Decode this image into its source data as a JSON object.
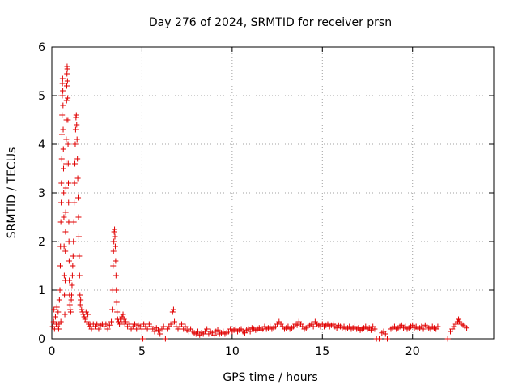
{
  "chart_data": {
    "type": "scatter",
    "title": "Day 276 of 2024, SRMTID for receiver prsn",
    "xlabel": "GPS time / hours",
    "ylabel": "SRMTID / TECUs",
    "xlim": [
      0,
      24.5
    ],
    "ylim": [
      0,
      6
    ],
    "xticks": [
      0,
      5,
      10,
      15,
      20
    ],
    "xtick_labels": [
      "0",
      "5",
      "10",
      "15",
      "20"
    ],
    "yticks": [
      0,
      1,
      2,
      3,
      4,
      5,
      6
    ],
    "ytick_labels": [
      "0",
      "1",
      "2",
      "3",
      "4",
      "5",
      "6"
    ],
    "grid": true,
    "marker": "plus",
    "series": [
      {
        "name": "SRMTID",
        "color": "#e00000",
        "points": [
          [
            0.05,
            0.25
          ],
          [
            0.1,
            0.35
          ],
          [
            0.12,
            0.6
          ],
          [
            0.15,
            0.2
          ],
          [
            0.2,
            0.45
          ],
          [
            0.25,
            0.3
          ],
          [
            0.28,
            0.65
          ],
          [
            0.3,
            0.25
          ],
          [
            0.35,
            0.55
          ],
          [
            0.38,
            0.2
          ],
          [
            0.4,
            0.3
          ],
          [
            0.42,
            0.8
          ],
          [
            0.45,
            1.0
          ],
          [
            0.47,
            1.5
          ],
          [
            0.48,
            1.9
          ],
          [
            0.5,
            2.4
          ],
          [
            0.5,
            0.35
          ],
          [
            0.52,
            2.8
          ],
          [
            0.53,
            3.2
          ],
          [
            0.55,
            3.7
          ],
          [
            0.56,
            4.2
          ],
          [
            0.57,
            4.6
          ],
          [
            0.58,
            5.0
          ],
          [
            0.59,
            5.25
          ],
          [
            0.6,
            5.35
          ],
          [
            0.61,
            5.1
          ],
          [
            0.62,
            4.8
          ],
          [
            0.63,
            4.3
          ],
          [
            0.64,
            3.9
          ],
          [
            0.65,
            3.5
          ],
          [
            0.66,
            3.0
          ],
          [
            0.67,
            2.5
          ],
          [
            0.68,
            1.9
          ],
          [
            0.69,
            1.3
          ],
          [
            0.7,
            0.9
          ],
          [
            0.72,
            0.5
          ],
          [
            0.74,
            1.2
          ],
          [
            0.75,
            1.8
          ],
          [
            0.76,
            2.2
          ],
          [
            0.77,
            2.6
          ],
          [
            0.78,
            3.1
          ],
          [
            0.79,
            3.6
          ],
          [
            0.8,
            4.1
          ],
          [
            0.81,
            4.5
          ],
          [
            0.82,
            4.9
          ],
          [
            0.83,
            5.2
          ],
          [
            0.84,
            5.45
          ],
          [
            0.85,
            5.6
          ],
          [
            0.86,
            5.55
          ],
          [
            0.87,
            5.3
          ],
          [
            0.88,
            4.95
          ],
          [
            0.89,
            4.5
          ],
          [
            0.9,
            4.0
          ],
          [
            0.91,
            3.6
          ],
          [
            0.92,
            3.2
          ],
          [
            0.93,
            2.8
          ],
          [
            0.94,
            2.4
          ],
          [
            0.95,
            2.0
          ],
          [
            0.96,
            1.6
          ],
          [
            0.97,
            1.2
          ],
          [
            0.98,
            0.9
          ],
          [
            1.0,
            0.7
          ],
          [
            1.02,
            0.6
          ],
          [
            1.05,
            0.55
          ],
          [
            1.08,
            0.8
          ],
          [
            1.1,
            0.9
          ],
          [
            1.12,
            1.1
          ],
          [
            1.14,
            1.3
          ],
          [
            1.16,
            1.5
          ],
          [
            1.18,
            1.7
          ],
          [
            1.2,
            2.0
          ],
          [
            1.22,
            2.4
          ],
          [
            1.24,
            2.8
          ],
          [
            1.26,
            3.2
          ],
          [
            1.28,
            3.6
          ],
          [
            1.3,
            4.0
          ],
          [
            1.32,
            4.3
          ],
          [
            1.34,
            4.55
          ],
          [
            1.36,
            4.6
          ],
          [
            1.38,
            4.4
          ],
          [
            1.4,
            4.1
          ],
          [
            1.42,
            3.7
          ],
          [
            1.44,
            3.3
          ],
          [
            1.46,
            2.9
          ],
          [
            1.48,
            2.5
          ],
          [
            1.5,
            2.1
          ],
          [
            1.52,
            1.7
          ],
          [
            1.54,
            1.3
          ],
          [
            1.56,
            0.9
          ],
          [
            1.58,
            0.7
          ],
          [
            1.6,
            0.8
          ],
          [
            1.65,
            0.6
          ],
          [
            1.7,
            0.55
          ],
          [
            1.75,
            0.5
          ],
          [
            1.8,
            0.45
          ],
          [
            1.85,
            0.4
          ],
          [
            1.9,
            0.55
          ],
          [
            1.95,
            0.35
          ],
          [
            2.0,
            0.5
          ],
          [
            2.05,
            0.3
          ],
          [
            2.1,
            0.25
          ],
          [
            2.15,
            0.3
          ],
          [
            2.2,
            0.2
          ],
          [
            2.3,
            0.3
          ],
          [
            2.4,
            0.25
          ],
          [
            2.5,
            0.3
          ],
          [
            2.6,
            0.2
          ],
          [
            2.7,
            0.28
          ],
          [
            2.8,
            0.3
          ],
          [
            2.9,
            0.25
          ],
          [
            3.0,
            0.3
          ],
          [
            3.1,
            0.2
          ],
          [
            3.2,
            0.28
          ],
          [
            3.3,
            0.35
          ],
          [
            3.35,
            0.6
          ],
          [
            3.38,
            1.0
          ],
          [
            3.4,
            1.5
          ],
          [
            3.42,
            1.8
          ],
          [
            3.44,
            2.0
          ],
          [
            3.46,
            2.2
          ],
          [
            3.48,
            2.25
          ],
          [
            3.5,
            2.1
          ],
          [
            3.52,
            1.9
          ],
          [
            3.54,
            1.6
          ],
          [
            3.56,
            1.3
          ],
          [
            3.58,
            1.0
          ],
          [
            3.6,
            0.75
          ],
          [
            3.62,
            0.55
          ],
          [
            3.65,
            0.4
          ],
          [
            3.7,
            0.35
          ],
          [
            3.75,
            0.3
          ],
          [
            3.8,
            0.4
          ],
          [
            3.85,
            0.35
          ],
          [
            3.9,
            0.45
          ],
          [
            3.95,
            0.5
          ],
          [
            4.0,
            0.4
          ],
          [
            4.05,
            0.3
          ],
          [
            4.1,
            0.35
          ],
          [
            4.2,
            0.25
          ],
          [
            4.3,
            0.3
          ],
          [
            4.4,
            0.2
          ],
          [
            4.5,
            0.25
          ],
          [
            4.6,
            0.3
          ],
          [
            4.7,
            0.2
          ],
          [
            4.8,
            0.28
          ],
          [
            4.9,
            0.25
          ],
          [
            5.0,
            0.2
          ],
          [
            5.05,
            0.0
          ],
          [
            5.1,
            0.3
          ],
          [
            5.2,
            0.25
          ],
          [
            5.3,
            0.2
          ],
          [
            5.4,
            0.3
          ],
          [
            5.5,
            0.25
          ],
          [
            5.6,
            0.2
          ],
          [
            5.7,
            0.15
          ],
          [
            5.8,
            0.22
          ],
          [
            5.9,
            0.18
          ],
          [
            6.0,
            0.1
          ],
          [
            6.1,
            0.2
          ],
          [
            6.2,
            0.25
          ],
          [
            6.3,
            0.0
          ],
          [
            6.4,
            0.2
          ],
          [
            6.5,
            0.25
          ],
          [
            6.6,
            0.3
          ],
          [
            6.7,
            0.55
          ],
          [
            6.75,
            0.6
          ],
          [
            6.8,
            0.35
          ],
          [
            6.9,
            0.25
          ],
          [
            7.0,
            0.2
          ],
          [
            7.1,
            0.25
          ],
          [
            7.2,
            0.3
          ],
          [
            7.3,
            0.2
          ],
          [
            7.4,
            0.25
          ],
          [
            7.5,
            0.18
          ],
          [
            7.6,
            0.15
          ],
          [
            7.7,
            0.2
          ],
          [
            7.8,
            0.15
          ],
          [
            7.9,
            0.12
          ],
          [
            8.0,
            0.1
          ],
          [
            8.1,
            0.15
          ],
          [
            8.2,
            0.08
          ],
          [
            8.3,
            0.12
          ],
          [
            8.4,
            0.1
          ],
          [
            8.5,
            0.15
          ],
          [
            8.6,
            0.2
          ],
          [
            8.7,
            0.1
          ],
          [
            8.8,
            0.15
          ],
          [
            8.9,
            0.12
          ],
          [
            9.0,
            0.08
          ],
          [
            9.1,
            0.15
          ],
          [
            9.2,
            0.18
          ],
          [
            9.3,
            0.1
          ],
          [
            9.4,
            0.12
          ],
          [
            9.5,
            0.15
          ],
          [
            9.6,
            0.1
          ],
          [
            9.7,
            0.12
          ],
          [
            9.8,
            0.15
          ],
          [
            9.9,
            0.2
          ],
          [
            10.0,
            0.15
          ],
          [
            10.1,
            0.18
          ],
          [
            10.2,
            0.2
          ],
          [
            10.3,
            0.15
          ],
          [
            10.4,
            0.18
          ],
          [
            10.5,
            0.2
          ],
          [
            10.6,
            0.15
          ],
          [
            10.7,
            0.12
          ],
          [
            10.8,
            0.18
          ],
          [
            10.9,
            0.2
          ],
          [
            11.0,
            0.15
          ],
          [
            11.1,
            0.22
          ],
          [
            11.2,
            0.2
          ],
          [
            11.3,
            0.18
          ],
          [
            11.4,
            0.2
          ],
          [
            11.5,
            0.22
          ],
          [
            11.6,
            0.18
          ],
          [
            11.7,
            0.2
          ],
          [
            11.8,
            0.25
          ],
          [
            11.9,
            0.2
          ],
          [
            12.0,
            0.22
          ],
          [
            12.1,
            0.25
          ],
          [
            12.2,
            0.2
          ],
          [
            12.3,
            0.22
          ],
          [
            12.4,
            0.25
          ],
          [
            12.5,
            0.3
          ],
          [
            12.6,
            0.35
          ],
          [
            12.7,
            0.3
          ],
          [
            12.8,
            0.25
          ],
          [
            12.9,
            0.2
          ],
          [
            13.0,
            0.22
          ],
          [
            13.1,
            0.25
          ],
          [
            13.2,
            0.2
          ],
          [
            13.3,
            0.22
          ],
          [
            13.4,
            0.25
          ],
          [
            13.5,
            0.3
          ],
          [
            13.6,
            0.28
          ],
          [
            13.7,
            0.35
          ],
          [
            13.8,
            0.3
          ],
          [
            13.9,
            0.25
          ],
          [
            14.0,
            0.2
          ],
          [
            14.1,
            0.22
          ],
          [
            14.2,
            0.25
          ],
          [
            14.3,
            0.28
          ],
          [
            14.4,
            0.3
          ],
          [
            14.5,
            0.25
          ],
          [
            14.6,
            0.35
          ],
          [
            14.7,
            0.3
          ],
          [
            14.8,
            0.28
          ],
          [
            14.9,
            0.25
          ],
          [
            15.0,
            0.3
          ],
          [
            15.1,
            0.25
          ],
          [
            15.2,
            0.28
          ],
          [
            15.3,
            0.3
          ],
          [
            15.4,
            0.25
          ],
          [
            15.5,
            0.28
          ],
          [
            15.6,
            0.3
          ],
          [
            15.7,
            0.25
          ],
          [
            15.8,
            0.22
          ],
          [
            15.9,
            0.28
          ],
          [
            16.0,
            0.25
          ],
          [
            16.1,
            0.22
          ],
          [
            16.2,
            0.25
          ],
          [
            16.3,
            0.2
          ],
          [
            16.4,
            0.22
          ],
          [
            16.5,
            0.25
          ],
          [
            16.6,
            0.2
          ],
          [
            16.7,
            0.22
          ],
          [
            16.8,
            0.25
          ],
          [
            16.9,
            0.2
          ],
          [
            17.0,
            0.22
          ],
          [
            17.1,
            0.18
          ],
          [
            17.2,
            0.2
          ],
          [
            17.3,
            0.22
          ],
          [
            17.4,
            0.25
          ],
          [
            17.5,
            0.2
          ],
          [
            17.6,
            0.22
          ],
          [
            17.7,
            0.18
          ],
          [
            17.8,
            0.25
          ],
          [
            17.9,
            0.2
          ],
          [
            18.0,
            0.0
          ],
          [
            18.15,
            0.0
          ],
          [
            18.3,
            0.12
          ],
          [
            18.4,
            0.15
          ],
          [
            18.5,
            0.1
          ],
          [
            18.6,
            0.0
          ],
          [
            18.8,
            0.2
          ],
          [
            18.9,
            0.22
          ],
          [
            19.0,
            0.25
          ],
          [
            19.1,
            0.2
          ],
          [
            19.2,
            0.22
          ],
          [
            19.3,
            0.25
          ],
          [
            19.4,
            0.28
          ],
          [
            19.5,
            0.22
          ],
          [
            19.6,
            0.25
          ],
          [
            19.7,
            0.2
          ],
          [
            19.8,
            0.22
          ],
          [
            19.9,
            0.25
          ],
          [
            20.0,
            0.28
          ],
          [
            20.1,
            0.22
          ],
          [
            20.2,
            0.25
          ],
          [
            20.3,
            0.2
          ],
          [
            20.4,
            0.22
          ],
          [
            20.5,
            0.25
          ],
          [
            20.6,
            0.2
          ],
          [
            20.7,
            0.28
          ],
          [
            20.8,
            0.25
          ],
          [
            20.9,
            0.22
          ],
          [
            21.0,
            0.2
          ],
          [
            21.1,
            0.25
          ],
          [
            21.2,
            0.22
          ],
          [
            21.3,
            0.2
          ],
          [
            21.4,
            0.25
          ],
          [
            21.95,
            0.0
          ],
          [
            22.1,
            0.15
          ],
          [
            22.2,
            0.2
          ],
          [
            22.3,
            0.25
          ],
          [
            22.4,
            0.3
          ],
          [
            22.5,
            0.35
          ],
          [
            22.55,
            0.4
          ],
          [
            22.6,
            0.35
          ],
          [
            22.7,
            0.3
          ],
          [
            22.8,
            0.28
          ],
          [
            22.9,
            0.25
          ],
          [
            23.0,
            0.22
          ]
        ]
      }
    ]
  }
}
